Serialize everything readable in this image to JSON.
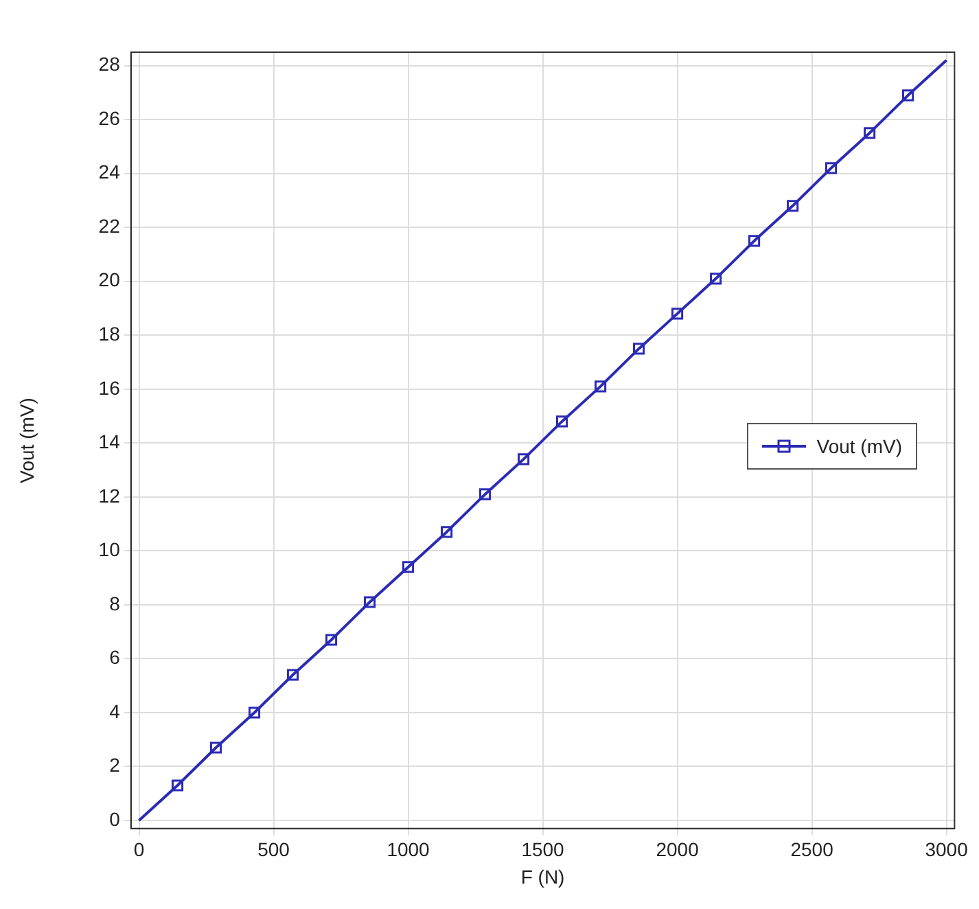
{
  "chart_data": {
    "type": "line",
    "xlabel": "F (N)",
    "ylabel": "Vout (mV)",
    "x": [
      0,
      142.9,
      285.7,
      428.6,
      571.4,
      714.3,
      857.1,
      1000,
      1142.9,
      1285.7,
      1428.6,
      1571.4,
      1714.3,
      1857.1,
      2000,
      2142.9,
      2285.7,
      2428.6,
      2571.4,
      2714.3,
      2857.1,
      3000
    ],
    "series": [
      {
        "name": "Vout (mV)",
        "color": "#2b2bb5",
        "values": [
          0,
          1.3,
          2.7,
          4.0,
          5.4,
          6.7,
          8.1,
          9.4,
          10.7,
          12.1,
          13.4,
          14.8,
          16.1,
          17.5,
          18.8,
          20.1,
          21.5,
          22.8,
          24.2,
          25.5,
          26.9,
          28.2
        ]
      }
    ],
    "xlim": [
      -30,
      3030
    ],
    "xticks": [
      0,
      500,
      1000,
      1500,
      2000,
      2500,
      3000
    ],
    "ylim": [
      -0.3,
      28.5
    ],
    "yticks": [
      0,
      2,
      4,
      6,
      8,
      10,
      12,
      14,
      16,
      18,
      20,
      22,
      24,
      26,
      28
    ],
    "grid": true,
    "legend": "right",
    "marker": "square",
    "line_style": "solid"
  }
}
